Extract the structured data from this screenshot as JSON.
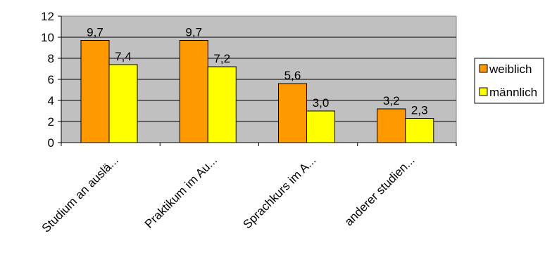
{
  "chart_data": {
    "type": "bar",
    "categories": [
      "Studium an auslä...",
      "Praktikum im Au...",
      "Sprachkurs im A...",
      "anderer studien..."
    ],
    "series": [
      {
        "name": "weiblich",
        "values": [
          9.7,
          9.7,
          5.6,
          3.2
        ],
        "labels": [
          "9,7",
          "9,7",
          "5,6",
          "3,2"
        ],
        "color": "#FF9900"
      },
      {
        "name": "männlich",
        "values": [
          7.4,
          7.2,
          3.0,
          2.3
        ],
        "labels": [
          "7,4",
          "7,2",
          "3,0",
          "2,3"
        ],
        "color": "#FFFF00"
      }
    ],
    "ylim": [
      0,
      12
    ],
    "yticks": [
      0,
      2,
      4,
      6,
      8,
      10,
      12
    ],
    "ytick_labels": [
      "0",
      "2",
      "4",
      "6",
      "8",
      "10",
      "12"
    ],
    "grid": true,
    "plot_background": "#C0C0C0",
    "legend_position": "right"
  }
}
